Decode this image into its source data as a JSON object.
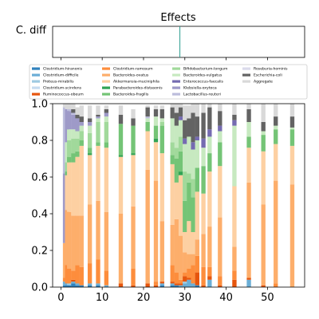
{
  "chart_data": [
    {
      "type": "line",
      "title": "Effects",
      "ylabel": "C. diff",
      "xlim": [
        -2,
        59
      ],
      "vline_x": 28.8,
      "vline_color": "#2a9d8f"
    },
    {
      "type": "bar",
      "stacked": true,
      "ylim": [
        0,
        1.0
      ],
      "xlim": [
        -2,
        59
      ],
      "xticks": [
        0,
        10,
        20,
        30,
        40,
        50
      ],
      "yticks": [
        0.0,
        0.2,
        0.4,
        0.6,
        0.8,
        1.0
      ],
      "ytick_labels": [
        "0.0",
        "0.2",
        "0.4",
        "0.6",
        "0.8",
        "1.0"
      ],
      "legend_position": "top",
      "series": [
        {
          "name": "Clostridium-hiranonis",
          "color": "#3182bd"
        },
        {
          "name": "Clostridium-difficile",
          "color": "#6baed6"
        },
        {
          "name": "Proteus-mirabilis",
          "color": "#9ecae1"
        },
        {
          "name": "Clostridium-scindens",
          "color": "#c6dbef"
        },
        {
          "name": "Ruminococcus-obeum",
          "color": "#e6550d"
        },
        {
          "name": "Clostridium-ramosum",
          "color": "#fd8d3c"
        },
        {
          "name": "Bacteroides-ovatus",
          "color": "#fdae6b"
        },
        {
          "name": "Akkermansia-muciniphila",
          "color": "#fdd0a2"
        },
        {
          "name": "Parabacteroides-distasonis",
          "color": "#31a354"
        },
        {
          "name": "Bacteroides-fragilis",
          "color": "#74c476"
        },
        {
          "name": "Bifidobacterium-longum",
          "color": "#a1d99b"
        },
        {
          "name": "Bacteroides-vulgatus",
          "color": "#c7e9c0"
        },
        {
          "name": "Enterococcus-faecalis",
          "color": "#756bb1"
        },
        {
          "name": "Klebsiella-oxytoca",
          "color": "#9e9ac8"
        },
        {
          "name": "Lactobacillus-reuteri",
          "color": "#bcbddc"
        },
        {
          "name": "Roseburia-hominis",
          "color": "#dadaeb"
        },
        {
          "name": "Escherichia-coli",
          "color": "#636363"
        },
        {
          "name": "Aggregate",
          "color": "#d9d9d9"
        }
      ],
      "samples": [
        {
          "x": 1.0,
          "values": [
            0.01,
            0.02,
            0.0,
            0.0,
            0.0,
            0.02,
            0.19,
            0.0,
            0.0,
            0.0,
            0.0,
            0.0,
            0.0,
            0.38,
            0.36,
            0.0,
            0.0,
            0.02
          ]
        },
        {
          "x": 1.5,
          "values": [
            0.01,
            0.01,
            0.0,
            0.0,
            0.0,
            0.1,
            0.3,
            0.19,
            0.0,
            0.02,
            0.05,
            0.11,
            0.0,
            0.18,
            0.0,
            0.0,
            0.0,
            0.03
          ]
        },
        {
          "x": 2.0,
          "values": [
            0.01,
            0.0,
            0.01,
            0.0,
            0.0,
            0.08,
            0.31,
            0.27,
            0.0,
            0.03,
            0.09,
            0.06,
            0.0,
            0.1,
            0.01,
            0.0,
            0.0,
            0.03
          ]
        },
        {
          "x": 3.0,
          "values": [
            0.02,
            0.01,
            0.0,
            0.0,
            0.01,
            0.05,
            0.3,
            0.29,
            0.0,
            0.05,
            0.08,
            0.05,
            0.0,
            0.08,
            0.01,
            0.0,
            0.02,
            0.03
          ]
        },
        {
          "x": 4.0,
          "values": [
            0.01,
            0.01,
            0.0,
            0.0,
            0.0,
            0.1,
            0.27,
            0.32,
            0.0,
            0.03,
            0.07,
            0.04,
            0.0,
            0.07,
            0.0,
            0.0,
            0.02,
            0.04
          ]
        },
        {
          "x": 5.0,
          "values": [
            0.01,
            0.0,
            0.0,
            0.0,
            0.0,
            0.1,
            0.28,
            0.38,
            0.0,
            0.03,
            0.05,
            0.03,
            0.0,
            0.02,
            0.0,
            0.0,
            0.03,
            0.06
          ]
        },
        {
          "x": 7.0,
          "values": [
            0.01,
            0.01,
            0.0,
            0.0,
            0.0,
            0.11,
            0.32,
            0.27,
            0.01,
            0.03,
            0.08,
            0.04,
            0.0,
            0.02,
            0.0,
            0.0,
            0.02,
            0.07
          ]
        },
        {
          "x": 9.0,
          "values": [
            0.01,
            0.01,
            0.0,
            0.0,
            0.0,
            0.13,
            0.32,
            0.3,
            0.0,
            0.02,
            0.11,
            0.02,
            0.0,
            0.01,
            0.0,
            0.0,
            0.01,
            0.05
          ]
        },
        {
          "x": 11.0,
          "values": [
            0.0,
            0.01,
            0.0,
            0.0,
            0.0,
            0.08,
            0.32,
            0.35,
            0.0,
            0.03,
            0.11,
            0.03,
            0.0,
            0.02,
            0.0,
            0.0,
            0.02,
            0.02
          ]
        },
        {
          "x": 14.5,
          "values": [
            0.0,
            0.0,
            0.0,
            0.0,
            0.02,
            0.0,
            0.38,
            0.31,
            0.01,
            0.17,
            0.0,
            0.0,
            0.0,
            0.0,
            0.0,
            0.0,
            0.05,
            0.05
          ]
        },
        {
          "x": 17.5,
          "values": [
            0.0,
            0.0,
            0.0,
            0.0,
            0.01,
            0.09,
            0.34,
            0.28,
            0.01,
            0.15,
            0.0,
            0.0,
            0.0,
            0.0,
            0.0,
            0.0,
            0.04,
            0.05
          ]
        },
        {
          "x": 21.0,
          "values": [
            0.0,
            0.0,
            0.0,
            0.0,
            0.02,
            0.0,
            0.62,
            0.21,
            0.0,
            0.05,
            0.0,
            0.02,
            0.0,
            0.0,
            0.01,
            0.0,
            0.05,
            0.01
          ]
        },
        {
          "x": 23.0,
          "values": [
            0.0,
            0.0,
            0.0,
            0.0,
            0.01,
            0.02,
            0.55,
            0.21,
            0.02,
            0.07,
            0.0,
            0.05,
            0.0,
            0.0,
            0.0,
            0.0,
            0.04,
            0.02
          ]
        },
        {
          "x": 24.5,
          "values": [
            0.01,
            0.01,
            0.0,
            0.0,
            0.01,
            0.0,
            0.33,
            0.37,
            0.0,
            0.15,
            0.02,
            0.02,
            0.0,
            0.0,
            0.0,
            0.0,
            0.05,
            0.02
          ]
        },
        {
          "x": 27.0,
          "values": [
            0.01,
            0.01,
            0.0,
            0.0,
            0.01,
            0.09,
            0.22,
            0.33,
            0.0,
            0.05,
            0.07,
            0.13,
            0.0,
            0.0,
            0.0,
            0.0,
            0.06,
            0.02
          ]
        },
        {
          "x": 28.0,
          "values": [
            0.01,
            0.0,
            0.0,
            0.0,
            0.01,
            0.06,
            0.29,
            0.2,
            0.0,
            0.13,
            0.06,
            0.12,
            0.0,
            0.0,
            0.0,
            0.0,
            0.07,
            0.05
          ]
        },
        {
          "x": 29.0,
          "values": [
            0.0,
            0.01,
            0.0,
            0.0,
            0.01,
            0.02,
            0.24,
            0.33,
            0.02,
            0.11,
            0.08,
            0.09,
            0.02,
            0.0,
            0.0,
            0.0,
            0.05,
            0.02
          ]
        },
        {
          "x": 30.0,
          "values": [
            0.0,
            0.02,
            0.01,
            0.0,
            0.03,
            0.02,
            0.11,
            0.11,
            0.0,
            0.17,
            0.16,
            0.15,
            0.03,
            0.0,
            0.0,
            0.0,
            0.1,
            0.08
          ]
        },
        {
          "x": 31.0,
          "values": [
            0.0,
            0.04,
            0.0,
            0.0,
            0.01,
            0.05,
            0.08,
            0.18,
            0.0,
            0.21,
            0.05,
            0.2,
            0.0,
            0.0,
            0.0,
            0.0,
            0.1,
            0.07
          ]
        },
        {
          "x": 32.0,
          "values": [
            0.0,
            0.02,
            0.0,
            0.0,
            0.0,
            0.1,
            0.06,
            0.12,
            0.0,
            0.19,
            0.1,
            0.16,
            0.04,
            0.0,
            0.0,
            0.0,
            0.16,
            0.05
          ]
        },
        {
          "x": 33.0,
          "values": [
            0.01,
            0.0,
            0.0,
            0.0,
            0.07,
            0.09,
            0.09,
            0.26,
            0.0,
            0.13,
            0.0,
            0.15,
            0.02,
            0.0,
            0.0,
            0.0,
            0.11,
            0.07
          ]
        },
        {
          "x": 34.5,
          "values": [
            0.0,
            0.0,
            0.0,
            0.0,
            0.01,
            0.1,
            0.18,
            0.22,
            0.0,
            0.15,
            0.0,
            0.1,
            0.05,
            0.0,
            0.0,
            0.0,
            0.14,
            0.05
          ]
        },
        {
          "x": 36.0,
          "values": [
            0.0,
            0.04,
            0.0,
            0.0,
            0.02,
            0.05,
            0.22,
            0.3,
            0.0,
            0.1,
            0.0,
            0.09,
            0.04,
            0.0,
            0.0,
            0.0,
            0.12,
            0.02
          ]
        },
        {
          "x": 38.5,
          "values": [
            0.0,
            0.0,
            0.0,
            0.0,
            0.01,
            0.05,
            0.32,
            0.28,
            0.0,
            0.13,
            0.0,
            0.06,
            0.03,
            0.0,
            0.0,
            0.0,
            0.08,
            0.04
          ]
        },
        {
          "x": 42.0,
          "values": [
            0.0,
            0.0,
            0.0,
            0.0,
            0.04,
            0.05,
            0.13,
            0.33,
            0.0,
            0.0,
            0.0,
            0.33,
            0.03,
            0.0,
            0.0,
            0.0,
            0.03,
            0.06
          ]
        },
        {
          "x": 45.5,
          "values": [
            0.0,
            0.04,
            0.0,
            0.0,
            0.01,
            0.0,
            0.52,
            0.19,
            0.0,
            0.06,
            0.0,
            0.08,
            0.0,
            0.0,
            0.0,
            0.0,
            0.07,
            0.03
          ]
        },
        {
          "x": 49.0,
          "values": [
            0.0,
            0.0,
            0.0,
            0.0,
            0.01,
            0.0,
            0.44,
            0.29,
            0.0,
            0.09,
            0.0,
            0.02,
            0.0,
            0.0,
            0.0,
            0.0,
            0.05,
            0.1
          ]
        },
        {
          "x": 52.0,
          "values": [
            0.0,
            0.0,
            0.0,
            0.0,
            0.0,
            0.02,
            0.56,
            0.2,
            0.0,
            0.08,
            0.0,
            0.02,
            0.0,
            0.0,
            0.0,
            0.0,
            0.05,
            0.07
          ]
        },
        {
          "x": 56.0,
          "values": [
            0.0,
            0.0,
            0.0,
            0.0,
            0.0,
            0.0,
            0.56,
            0.21,
            0.0,
            0.09,
            0.0,
            0.01,
            0.0,
            0.0,
            0.0,
            0.0,
            0.06,
            0.07
          ]
        }
      ]
    }
  ]
}
